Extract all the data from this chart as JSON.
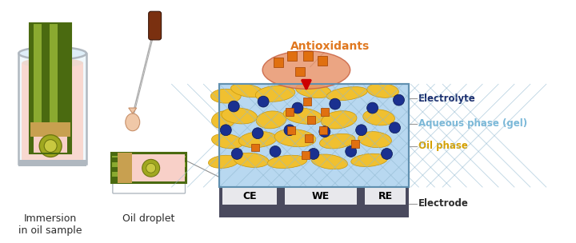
{
  "fig_bg": "#ffffff",
  "labels": {
    "antioxidants": "Antioxidants",
    "electrolyte": "Electrolyte",
    "aqueous": "Aqueous phase (gel)",
    "oil": "Oil phase",
    "electrode": "Electrode",
    "immersion": "Immersion\nin oil sample",
    "oil_droplet": "Oil droplet",
    "CE": "CE",
    "WE": "WE",
    "RE": "RE"
  },
  "colors": {
    "antioxidants_text": "#E07820",
    "electrolyte_text": "#1a2e6e",
    "aqueous_text": "#7ab8d8",
    "oil_text": "#d4a000",
    "electrode_text": "#2c2c2c",
    "body_text": "#2c2c2c",
    "electrode_dark": "#4a4a5e",
    "electrode_white": "#e8e8ec",
    "aqueous_bg": "#b8d8f0",
    "oil_yellow": "#f0c030",
    "oil_yellow_edge": "#c8960a",
    "antioxidants_blob": "#e8956d",
    "antioxidants_blob_edge": "#c86040",
    "antioxidants_sq": "#e07010",
    "blue_dot": "#1a3090",
    "blue_dot_edge": "#0a1850",
    "red_arrow": "#cc0000",
    "glass_fill": "#f0f8fc",
    "glass_edge": "#b0b8c0",
    "liq_pink": "#f8d8d0",
    "sheet_dkgreen": "#4a6a10",
    "sheet_ltgreen": "#8aaa30",
    "sheet_tan": "#c8a050",
    "sheet_pink": "#f8d0c8",
    "sheet_circ": "#a0a820",
    "sheet_circ_e": "#707810",
    "droplet": "#f0c8a8",
    "droplet_e": "#c8906a",
    "needle_rod": "#aaaaaa",
    "needle_handle": "#7a3010",
    "line_gray": "#909090",
    "gel_line": "#6090b0",
    "oil_swirl_bg": "#d8c080"
  }
}
